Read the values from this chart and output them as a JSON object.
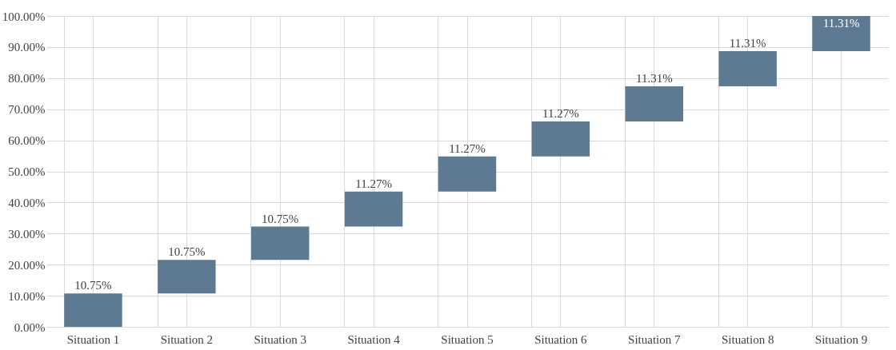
{
  "chart_data": {
    "type": "bar",
    "categories": [
      "Situation 1",
      "Situation 2",
      "Situation 3",
      "Situation 4",
      "Situation 5",
      "Situation 6",
      "Situation 7",
      "Situation 8",
      "Situation 9"
    ],
    "values": [
      10.75,
      10.75,
      10.75,
      11.27,
      11.27,
      11.27,
      11.31,
      11.31,
      11.31
    ],
    "base": [
      0,
      10.75,
      21.5,
      32.25,
      43.52,
      54.79,
      66.06,
      77.37,
      88.68
    ],
    "value_labels": [
      "10.75%",
      "10.75%",
      "10.75%",
      "11.27%",
      "11.27%",
      "11.27%",
      "11.31%",
      "11.31%",
      "11.31%"
    ],
    "color": "#5e7a93",
    "ylim": [
      0,
      100
    ],
    "yticks": [
      {
        "value": 0,
        "label": "0.00%"
      },
      {
        "value": 10,
        "label": "10.00%"
      },
      {
        "value": 20,
        "label": "20.00%"
      },
      {
        "value": 30,
        "label": "30.00%"
      },
      {
        "value": 40,
        "label": "40.00%"
      },
      {
        "value": 50,
        "label": "50.00%"
      },
      {
        "value": 60,
        "label": "60.00%"
      },
      {
        "value": 70,
        "label": "70.00%"
      },
      {
        "value": 80,
        "label": "80.00%"
      },
      {
        "value": 90,
        "label": "90.00%"
      },
      {
        "value": 100,
        "label": "100.00%"
      }
    ],
    "grid": true
  }
}
